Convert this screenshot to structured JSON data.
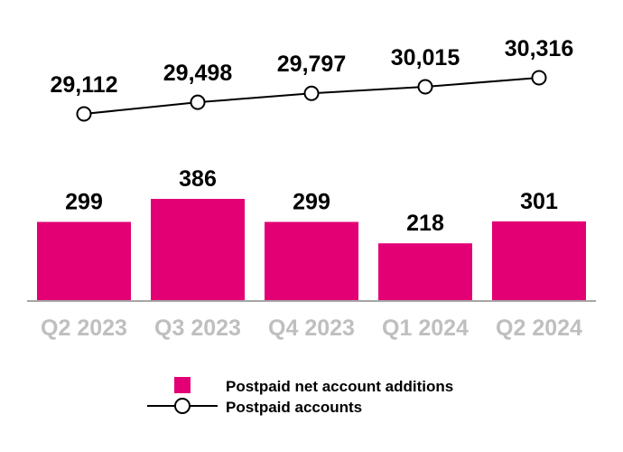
{
  "chart_data": {
    "type": "bar+line",
    "title": "",
    "categories": [
      "Q2 2023",
      "Q3 2023",
      "Q4 2023",
      "Q1 2024",
      "Q2 2024"
    ],
    "series": [
      {
        "name": "Postpaid net account additions",
        "type": "bar",
        "color": "#e20074",
        "values": [
          299,
          386,
          299,
          218,
          301
        ],
        "labels": [
          "299",
          "386",
          "299",
          "218",
          "301"
        ]
      },
      {
        "name": "Postpaid accounts",
        "type": "line",
        "color": "#000000",
        "marker": "open-circle",
        "values": [
          29112,
          29498,
          29797,
          30015,
          30316
        ],
        "labels": [
          "29,112",
          "29,498",
          "29,797",
          "30,015",
          "30,316"
        ]
      }
    ],
    "xlabel": "",
    "ylabel": "",
    "grid": false,
    "legend_position": "bottom",
    "axis_label_color": "#bfbfbf"
  },
  "legend": {
    "items": [
      {
        "label": "Postpaid net account additions",
        "symbol": "pink-square"
      },
      {
        "label": "Postpaid accounts",
        "symbol": "line-circle"
      }
    ]
  }
}
